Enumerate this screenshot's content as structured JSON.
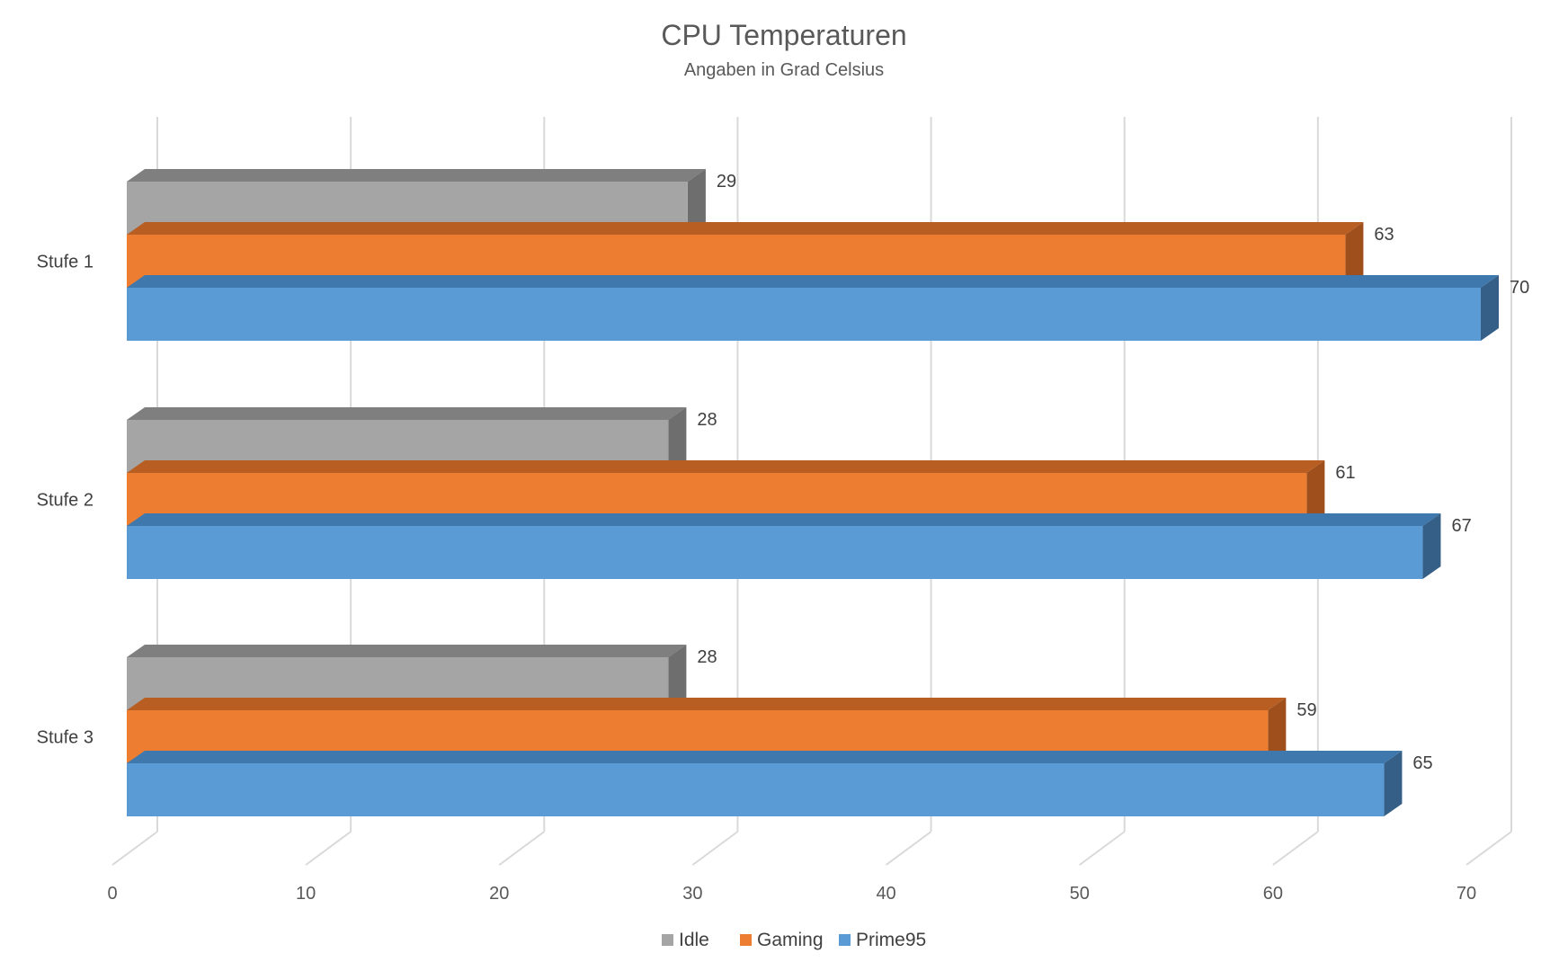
{
  "chart_data": {
    "type": "bar",
    "orientation": "horizontal",
    "style": "3d",
    "title": "CPU Temperaturen",
    "subtitle": "Angaben in Grad Celsius",
    "xlabel": "",
    "ylabel": "",
    "categories": [
      "Stufe 1",
      "Stufe 2",
      "Stufe 3"
    ],
    "series": [
      {
        "name": "Idle",
        "values": [
          29,
          28,
          28
        ],
        "color": "#A5A5A5",
        "top_color": "#7F7F7F",
        "side_color": "#6E6E6E"
      },
      {
        "name": "Gaming",
        "values": [
          63,
          61,
          59
        ],
        "color": "#ED7D31",
        "top_color": "#B85E22",
        "side_color": "#9E4F1B"
      },
      {
        "name": "Prime95",
        "values": [
          70,
          67,
          65
        ],
        "color": "#5B9BD5",
        "top_color": "#3F78AC",
        "side_color": "#355F86"
      }
    ],
    "xlim": [
      0,
      70
    ],
    "xticks": [
      "0",
      "10",
      "20",
      "30",
      "40",
      "50",
      "60",
      "70"
    ],
    "grid": true,
    "data_labels": true,
    "legend": "bottom"
  }
}
